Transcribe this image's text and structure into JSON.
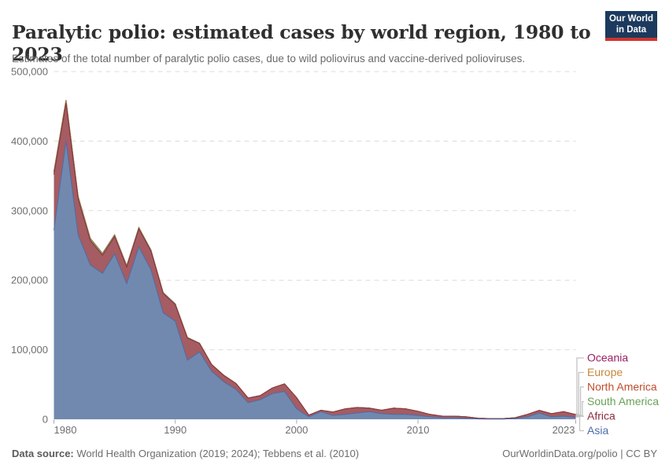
{
  "header": {
    "title": "Paralytic polio: estimated cases by world region, 1980 to 2023",
    "subtitle": "Estimates of the total number of paralytic polio cases, due to wild poliovirus and vaccine-derived polioviruses."
  },
  "logo": {
    "line1": "Our World",
    "line2": "in Data",
    "bg_color": "#1B3A5E",
    "accent_color": "#D0342C"
  },
  "footer": {
    "source_label": "Data source:",
    "source_value": " World Health Organization (2019; 2024); Tebbens et al. (2010)",
    "link_text": "OurWorldinData.org/polio | CC BY"
  },
  "chart_data": {
    "type": "area",
    "stacked": true,
    "title": "Paralytic polio: estimated cases by world region, 1980 to 2023",
    "xlabel": "",
    "ylabel": "",
    "ylim": [
      0,
      500000
    ],
    "grid": "horizontal-dashed",
    "legend_position": "right",
    "x": [
      1980,
      1981,
      1982,
      1983,
      1984,
      1985,
      1986,
      1987,
      1988,
      1989,
      1990,
      1991,
      1992,
      1993,
      1994,
      1995,
      1996,
      1997,
      1998,
      1999,
      2000,
      2001,
      2002,
      2003,
      2004,
      2005,
      2006,
      2007,
      2008,
      2009,
      2010,
      2011,
      2012,
      2013,
      2014,
      2015,
      2016,
      2017,
      2018,
      2019,
      2020,
      2021,
      2022,
      2023
    ],
    "series": [
      {
        "name": "Asia",
        "color": "#4C6CA8",
        "fill": "#7189AF",
        "values": [
          272000,
          400000,
          265000,
          222000,
          210000,
          238000,
          195000,
          248000,
          215000,
          153000,
          141000,
          85000,
          97000,
          69000,
          54000,
          43000,
          24000,
          28000,
          37000,
          40000,
          15000,
          3500,
          11000,
          5500,
          7000,
          9000,
          11000,
          8000,
          7000,
          7000,
          5500,
          3500,
          2200,
          2200,
          1500,
          400,
          200,
          200,
          1000,
          3400,
          9000,
          3400,
          4500,
          2600
        ]
      },
      {
        "name": "Africa",
        "color": "#8C2D3F",
        "fill": "#A55C62",
        "values": [
          80000,
          55000,
          52000,
          35000,
          26000,
          25000,
          24000,
          26000,
          27000,
          28000,
          24000,
          32000,
          12000,
          9500,
          9000,
          8500,
          6500,
          6000,
          8000,
          11000,
          16000,
          2500,
          2000,
          5000,
          8000,
          8000,
          5000,
          5000,
          9000,
          8000,
          6000,
          3500,
          2300,
          2300,
          2000,
          1100,
          800,
          800,
          1200,
          3600,
          3800,
          4600,
          6500,
          4200
        ]
      },
      {
        "name": "South America",
        "color": "#68A257",
        "fill": "#8CB47D",
        "values": [
          3000,
          2800,
          2500,
          2200,
          2000,
          1800,
          1600,
          1400,
          1200,
          1000,
          800,
          600,
          400,
          250,
          150,
          80,
          50,
          40,
          30,
          20,
          20,
          15,
          10,
          10,
          10,
          10,
          10,
          10,
          10,
          10,
          10,
          10,
          10,
          10,
          10,
          10,
          10,
          10,
          10,
          10,
          10,
          10,
          10,
          10
        ]
      },
      {
        "name": "North America",
        "color": "#BE4E2C",
        "fill": "#CB7352",
        "values": [
          400,
          400,
          300,
          250,
          220,
          200,
          180,
          150,
          130,
          110,
          90,
          70,
          60,
          40,
          30,
          20,
          10,
          10,
          10,
          10,
          5,
          5,
          5,
          5,
          5,
          5,
          5,
          5,
          5,
          5,
          5,
          5,
          5,
          5,
          5,
          5,
          5,
          5,
          5,
          5,
          5,
          5,
          5,
          5
        ]
      },
      {
        "name": "Europe",
        "color": "#C6883C",
        "fill": "#D5A968",
        "values": [
          1200,
          1000,
          800,
          600,
          500,
          400,
          300,
          250,
          200,
          150,
          100,
          80,
          60,
          50,
          40,
          30,
          20,
          20,
          15,
          10,
          10,
          10,
          10,
          10,
          10,
          10,
          10,
          10,
          10,
          10,
          10,
          10,
          10,
          10,
          10,
          10,
          10,
          10,
          10,
          10,
          10,
          10,
          10,
          10
        ]
      },
      {
        "name": "Oceania",
        "color": "#9B1E64",
        "fill": "#B45F90",
        "values": [
          100,
          100,
          100,
          100,
          80,
          80,
          80,
          60,
          60,
          50,
          40,
          30,
          20,
          20,
          10,
          10,
          10,
          5,
          5,
          5,
          5,
          5,
          5,
          5,
          5,
          5,
          5,
          5,
          5,
          5,
          5,
          5,
          5,
          5,
          5,
          5,
          5,
          5,
          5,
          5,
          5,
          5,
          5,
          5
        ]
      }
    ],
    "y_ticks": [
      {
        "value": 0,
        "label": "0"
      },
      {
        "value": 100000,
        "label": "100,000"
      },
      {
        "value": 200000,
        "label": "200,000"
      },
      {
        "value": 300000,
        "label": "300,000"
      },
      {
        "value": 400000,
        "label": "400,000"
      },
      {
        "value": 500000,
        "label": "500,000"
      }
    ],
    "x_ticks": [
      {
        "value": 1980,
        "label": "1980",
        "align": "start"
      },
      {
        "value": 1990,
        "label": "1990",
        "align": "middle"
      },
      {
        "value": 2000,
        "label": "2000",
        "align": "middle"
      },
      {
        "value": 2010,
        "label": "2010",
        "align": "middle"
      },
      {
        "value": 2023,
        "label": "2023",
        "align": "end"
      }
    ]
  },
  "legend": {
    "entries": [
      {
        "label": "Oceania",
        "color": "#9B1E64"
      },
      {
        "label": "Europe",
        "color": "#C6883C"
      },
      {
        "label": "North America",
        "color": "#BE4E2C"
      },
      {
        "label": "South America",
        "color": "#68A257"
      },
      {
        "label": "Africa",
        "color": "#8C2D3F"
      },
      {
        "label": "Asia",
        "color": "#4C6CA8"
      }
    ]
  }
}
